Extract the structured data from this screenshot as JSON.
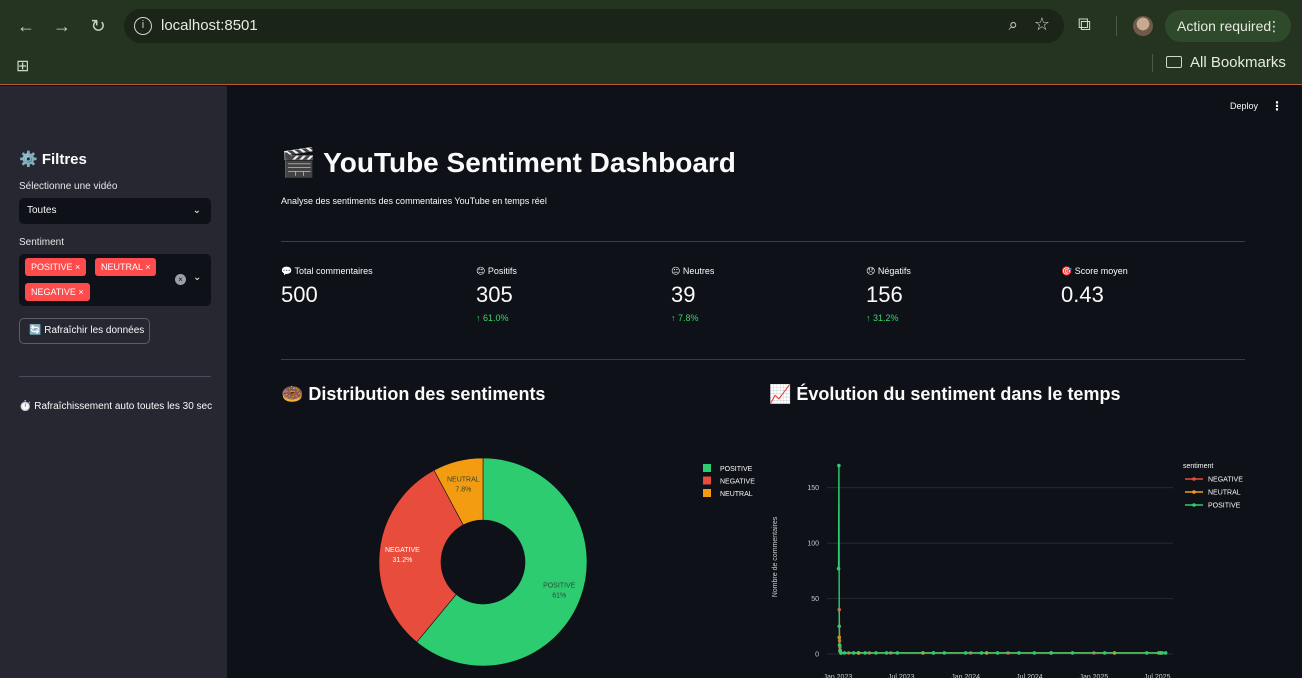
{
  "browser": {
    "url": "localhost:8501",
    "action_label": "Action required",
    "bookmarks_label": "All Bookmarks"
  },
  "sidebar": {
    "title": "⚙️ Filtres",
    "video_label": "Sélectionne une vidéo",
    "video_value": "Toutes",
    "sentiment_label": "Sentiment",
    "sentiment_tags": [
      "POSITIVE",
      "NEUTRAL",
      "NEGATIVE"
    ],
    "refresh_label": "🔄 Rafraîchir les données",
    "auto_refresh_text": "⏱️ Rafraîchissement auto toutes les 30 sec"
  },
  "header": {
    "deploy_label": "Deploy"
  },
  "main": {
    "title": "🎬 YouTube Sentiment Dashboard",
    "caption": "Analyse des sentiments des commentaires YouTube en temps réel",
    "metrics": [
      {
        "label": "💬 Total commentaires",
        "value": "500",
        "delta": ""
      },
      {
        "label": "😊 Positifs",
        "value": "305",
        "delta": "61.0%"
      },
      {
        "label": "😐 Neutres",
        "value": "39",
        "delta": "7.8%"
      },
      {
        "label": "😞 Négatifs",
        "value": "156",
        "delta": "31.2%"
      },
      {
        "label": "🎯 Score moyen",
        "value": "0.43",
        "delta": ""
      }
    ],
    "pie_title": "🍩 Distribution des sentiments",
    "line_title": "📈 Évolution du sentiment dans le temps"
  },
  "chart_data": [
    {
      "type": "pie",
      "hole": true,
      "categories": [
        "POSITIVE",
        "NEGATIVE",
        "NEUTRAL"
      ],
      "values": [
        61,
        31.2,
        7.8
      ],
      "labels": [
        "61%",
        "31.2%",
        "7.8%"
      ],
      "colors": [
        "#2ecc71",
        "#e74c3c",
        "#f39c12"
      ],
      "legend_position": "top-right"
    },
    {
      "type": "line",
      "ylabel": "Nombre de commentaires",
      "legend_title": "sentiment",
      "legend_position": "top-right",
      "ylim": [
        0,
        175
      ],
      "yticks": [
        0,
        50,
        100,
        150
      ],
      "xticks": [
        "Jan 2023",
        "Jul 2023",
        "Jan 2024",
        "Jul 2024",
        "Jan 2025",
        "Jul 2025"
      ],
      "series": [
        {
          "name": "NEGATIVE",
          "color": "#e74c3c",
          "x": [
            "2023-01-05",
            "2023-01-06",
            "2023-01-07",
            "2023-01-08",
            "2023-01-10",
            "2023-02-01",
            "2023-03-01",
            "2023-04-01",
            "2023-06-01",
            "2023-10-01",
            "2024-01-15",
            "2024-05-01",
            "2024-09-01",
            "2025-01-01",
            "2025-07-10"
          ],
          "y": [
            40,
            12,
            6,
            3,
            1,
            1,
            1,
            1,
            1,
            1,
            1,
            1,
            1,
            1,
            1
          ]
        },
        {
          "name": "NEUTRAL",
          "color": "#f39c12",
          "x": [
            "2023-01-05",
            "2023-01-06",
            "2023-01-07",
            "2023-01-10",
            "2023-03-01",
            "2023-09-01",
            "2024-03-01",
            "2024-09-01",
            "2025-03-01",
            "2025-07-10"
          ],
          "y": [
            15,
            8,
            3,
            1,
            1,
            1,
            1,
            1,
            1,
            1
          ]
        },
        {
          "name": "POSITIVE",
          "color": "#2ecc71",
          "x": [
            "2023-01-03",
            "2023-01-04",
            "2023-01-05",
            "2023-01-06",
            "2023-01-07",
            "2023-01-08",
            "2023-01-10",
            "2023-01-20",
            "2023-02-15",
            "2023-03-20",
            "2023-04-20",
            "2023-05-20",
            "2023-06-20",
            "2023-10-01",
            "2023-11-01",
            "2024-01-01",
            "2024-02-15",
            "2024-04-01",
            "2024-06-01",
            "2024-07-15",
            "2024-09-01",
            "2024-11-01",
            "2025-02-01",
            "2025-06-01",
            "2025-07-05",
            "2025-07-15",
            "2025-07-25"
          ],
          "y": [
            77,
            170,
            25,
            8,
            3,
            2,
            1,
            1,
            1,
            1,
            1,
            1,
            1,
            1,
            1,
            1,
            1,
            1,
            1,
            1,
            1,
            1,
            1,
            1,
            1,
            1,
            1
          ]
        }
      ]
    }
  ]
}
